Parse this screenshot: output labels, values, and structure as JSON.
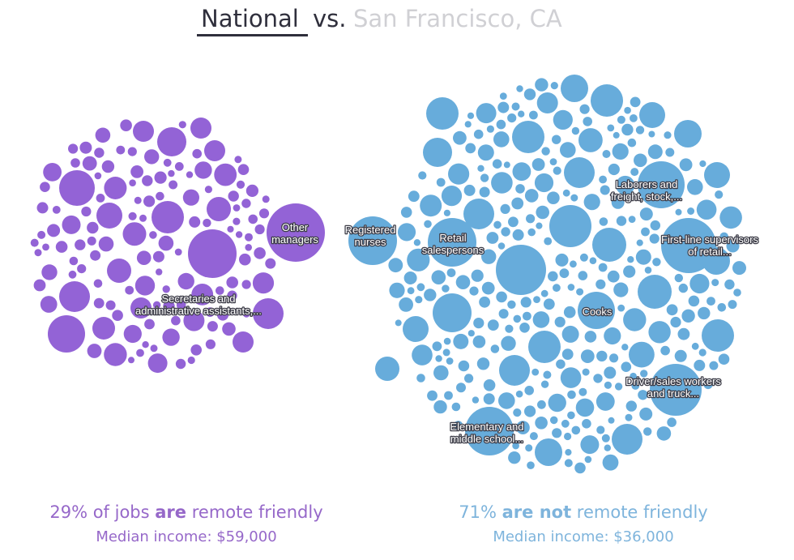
{
  "header": {
    "tab_national": "National",
    "vs": "vs.",
    "tab_location": "San Francisco, CA",
    "active_tab": "national",
    "active_color": "#2f2f3c",
    "inactive_color": "#d0d0d4"
  },
  "colors": {
    "remote": "#9363d6",
    "not_remote": "#67acdb",
    "remote_text": "#9668c9",
    "not_remote_text": "#7eb4dc"
  },
  "chart_data": {
    "type": "bubble-cluster",
    "groups": [
      {
        "key": "remote",
        "share_percent": 29,
        "median_income": 59000,
        "labels": [
          "Other managers",
          "Secretaries and administrative assistants,..."
        ]
      },
      {
        "key": "not_remote",
        "share_percent": 71,
        "median_income": 36000,
        "labels": [
          "Registered nurses",
          "Retail salespersons",
          "Laborers and freight, stock,...",
          "First-line supervisors of retail...",
          "Cooks",
          "Driver/sales workers and truck...",
          "Elementary and middle school..."
        ]
      }
    ]
  },
  "labels": {
    "other_managers": [
      "Other",
      "managers"
    ],
    "secretaries": [
      "Secretaries and",
      "administrative assistants,..."
    ],
    "registered_nurses": [
      "Registered",
      "nurses"
    ],
    "retail_salespersons": [
      "Retail",
      "salespersons"
    ],
    "laborers": [
      "Laborers and",
      "freight, stock,..."
    ],
    "first_line": [
      "First-line supervisors",
      "of retail..."
    ],
    "cooks": [
      "Cooks"
    ],
    "driver_sales": [
      "Driver/sales workers",
      "and truck..."
    ],
    "elementary": [
      "Elementary and",
      "middle school..."
    ]
  },
  "summary": {
    "left": {
      "pre": "29% of jobs ",
      "bold": "are",
      "post": " remote friendly",
      "income": "Median income: $59,000"
    },
    "right": {
      "pre": "71% ",
      "bold": "are not",
      "post": " remote friendly",
      "income": "Median income: $36,000"
    }
  }
}
